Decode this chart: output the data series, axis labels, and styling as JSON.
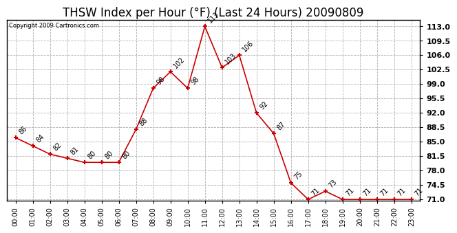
{
  "title": "THSW Index per Hour (°F) (Last 24 Hours) 20090809",
  "copyright": "Copyright 2009 Cartronics.com",
  "hours": [
    "00:00",
    "01:00",
    "02:00",
    "03:00",
    "04:00",
    "05:00",
    "06:00",
    "07:00",
    "08:00",
    "09:00",
    "10:00",
    "11:00",
    "12:00",
    "13:00",
    "14:00",
    "15:00",
    "16:00",
    "17:00",
    "18:00",
    "19:00",
    "20:00",
    "21:00",
    "22:00",
    "23:00"
  ],
  "values": [
    86,
    84,
    82,
    81,
    80,
    80,
    80,
    88,
    98,
    102,
    98,
    113,
    103,
    106,
    92,
    87,
    75,
    71,
    73,
    71,
    71,
    71,
    71,
    71
  ],
  "line_color": "#cc0000",
  "marker_color": "#cc0000",
  "grid_color": "#b0b0b0",
  "bg_color": "#ffffff",
  "ylim_min": 71.0,
  "ylim_max": 113.0,
  "ytick_step": 3.5,
  "title_fontsize": 12,
  "label_fontsize": 7,
  "annotation_fontsize": 7,
  "ytick_fontsize": 8,
  "ytick_bold": true
}
